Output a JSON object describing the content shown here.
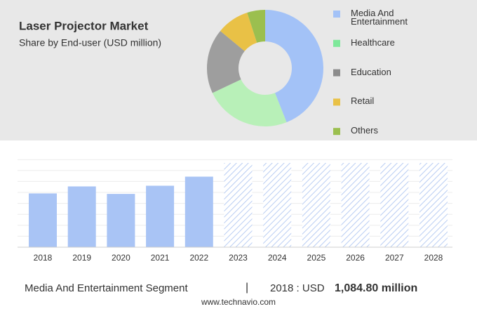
{
  "chart_data": [
    {
      "type": "pie",
      "title": "Laser Projector Market",
      "subtitle": "Share by End-user (USD million)",
      "categories": [
        "Media And Entertainment",
        "Healthcare",
        "Education",
        "Retail",
        "Others"
      ],
      "values": [
        44,
        24,
        18,
        9,
        5
      ],
      "colors": [
        "#a3c2f7",
        "#b8f0b8",
        "#9e9e9e",
        "#e9c146",
        "#9bbf4f"
      ],
      "legend_colors": [
        "#a3c2f7",
        "#7ee89a",
        "#8c8c8c",
        "#e9c146",
        "#9bbf4f"
      ],
      "donut": true
    },
    {
      "type": "bar",
      "categories": [
        "2018",
        "2019",
        "2020",
        "2021",
        "2022",
        "2023",
        "2024",
        "2025",
        "2026",
        "2027",
        "2028"
      ],
      "values": [
        1084.8,
        1226,
        1075,
        1240,
        1423,
        null,
        null,
        null,
        null,
        null,
        null
      ],
      "color": "#a9c4f5",
      "ylim": [
        0,
        1700
      ]
    }
  ],
  "footer": {
    "segment": "Media And Entertainment Segment",
    "separator": "|",
    "year_label": "2018 : USD",
    "value": "1,084.80 million"
  },
  "source": "www.technavio.com"
}
